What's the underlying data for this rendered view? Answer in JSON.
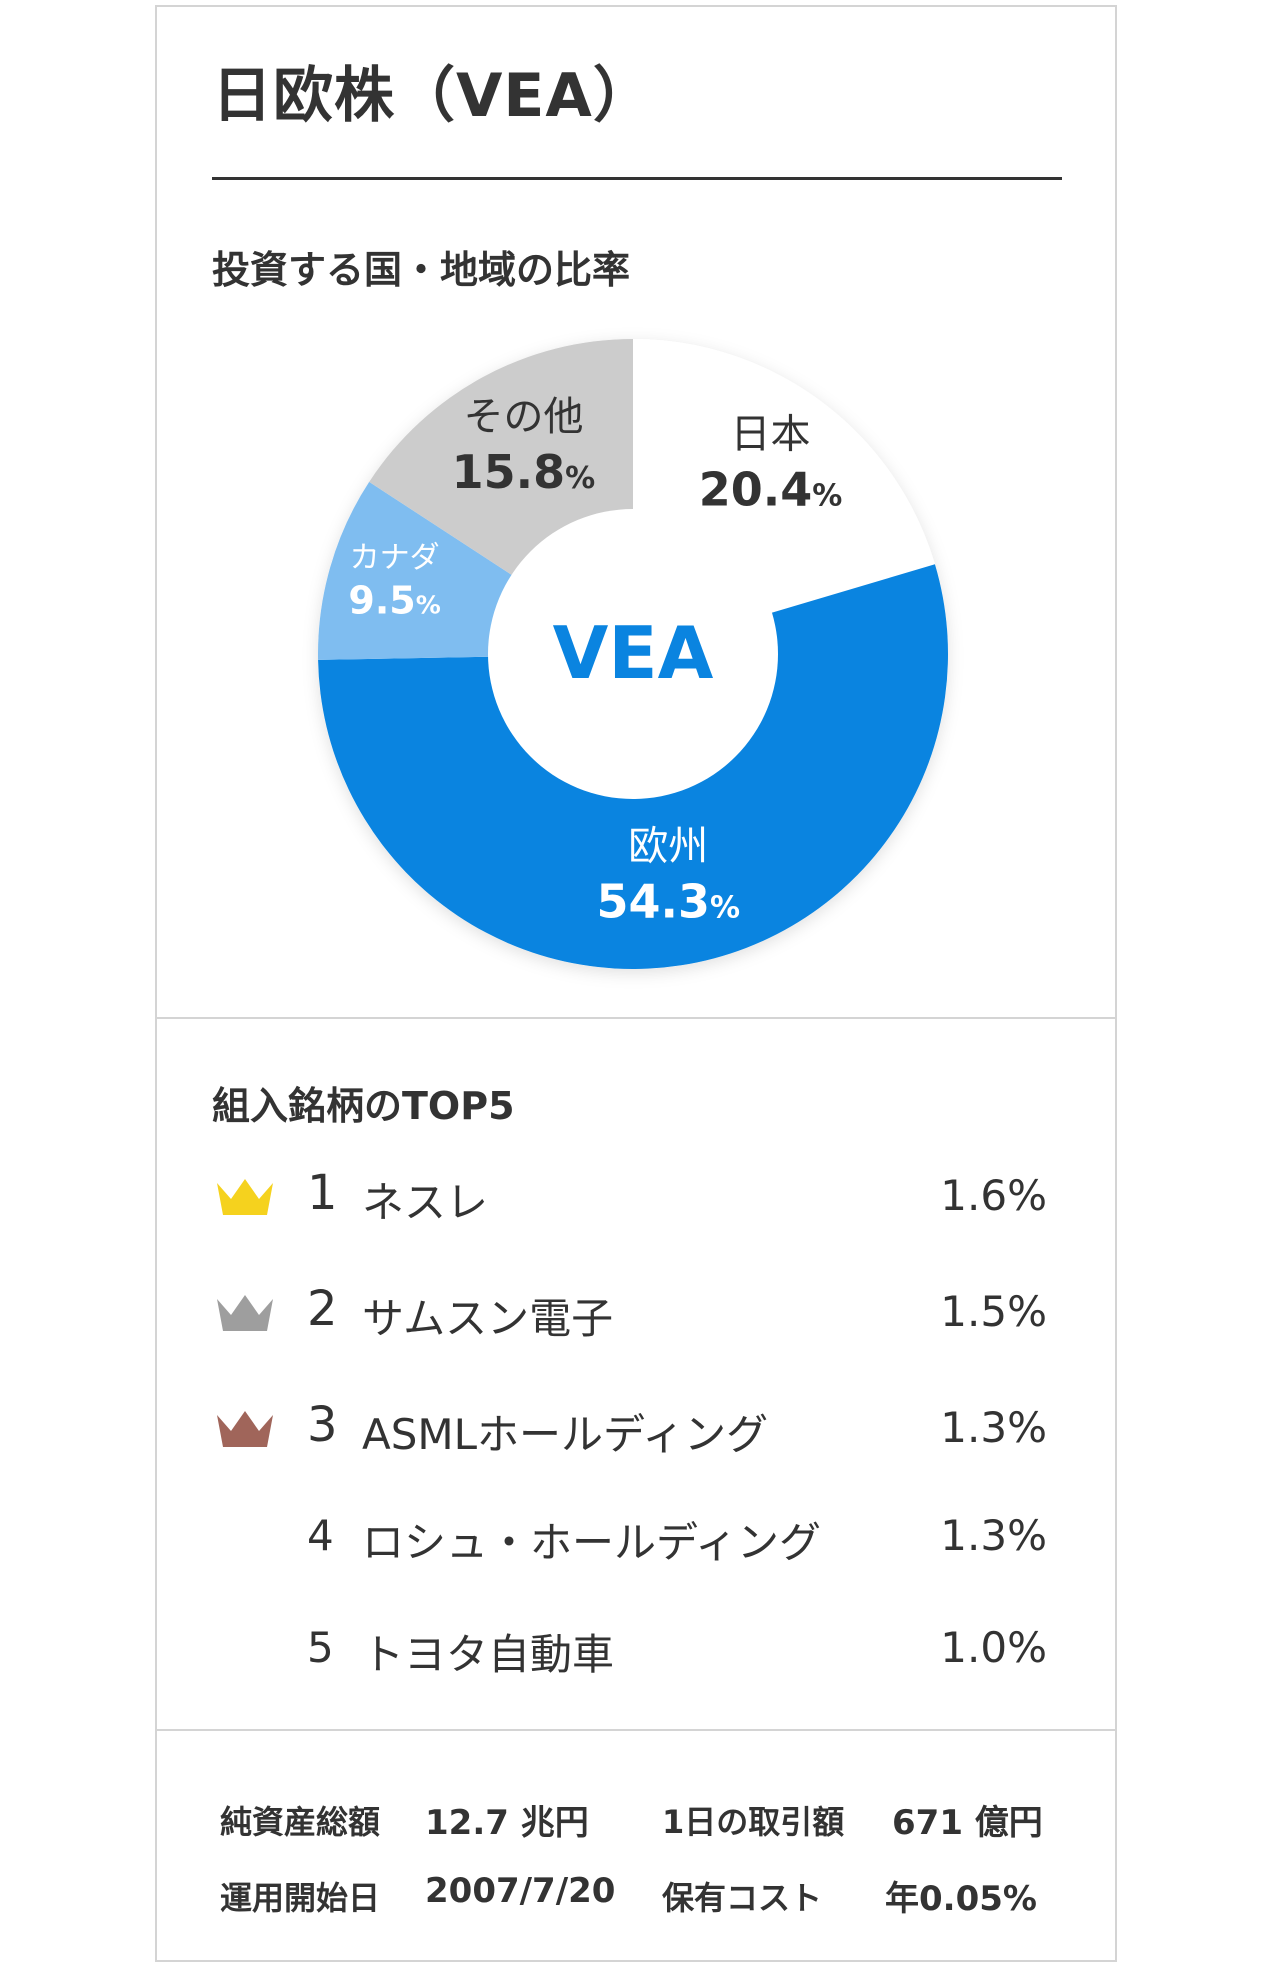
{
  "title": "日欧株（VEA）",
  "region_section": {
    "label": "投資する国・地域の比率"
  },
  "chart_data": {
    "type": "pie",
    "center_label": "VEA",
    "slices": [
      {
        "name": "日本",
        "value": 20.4,
        "value_text": "20.4",
        "color": "#ffffff",
        "text_color": "#333333"
      },
      {
        "name": "欧州",
        "value": 54.3,
        "value_text": "54.3",
        "color": "#0a84e0",
        "text_color": "#ffffff"
      },
      {
        "name": "カナダ",
        "value": 9.5,
        "value_text": "9.5",
        "color": "#7fbdf0",
        "text_color": "#ffffff"
      },
      {
        "name": "その他",
        "value": 15.8,
        "value_text": "15.8",
        "color": "#cccccc",
        "text_color": "#333333"
      }
    ],
    "percent_sign": "%",
    "center_color": "#0a84e0"
  },
  "holdings_section": {
    "label": "組入銘柄のTOP5",
    "items": [
      {
        "rank": "1",
        "name": "ネスレ",
        "pct": "1.6%",
        "crown": "gold"
      },
      {
        "rank": "2",
        "name": "サムスン電子",
        "pct": "1.5%",
        "crown": "silver"
      },
      {
        "rank": "3",
        "name": "ASMLホールディング",
        "pct": "1.3%",
        "crown": "bronze"
      },
      {
        "rank": "4",
        "name": "ロシュ・ホールディング",
        "pct": "1.3%",
        "crown": ""
      },
      {
        "rank": "5",
        "name": "トヨタ自動車",
        "pct": "1.0%",
        "crown": ""
      }
    ],
    "crown_colors": {
      "gold": "#f5d21e",
      "silver": "#9e9e9e",
      "bronze": "#a0655a"
    }
  },
  "stats": {
    "net_assets_label": "純資産総額",
    "net_assets_value": "12.7 兆円",
    "daily_volume_label": "1日の取引額",
    "daily_volume_value": "671 億円",
    "inception_label": "運用開始日",
    "inception_value": "2007/7/20",
    "cost_label": "保有コスト",
    "cost_value": "年0.05%"
  }
}
